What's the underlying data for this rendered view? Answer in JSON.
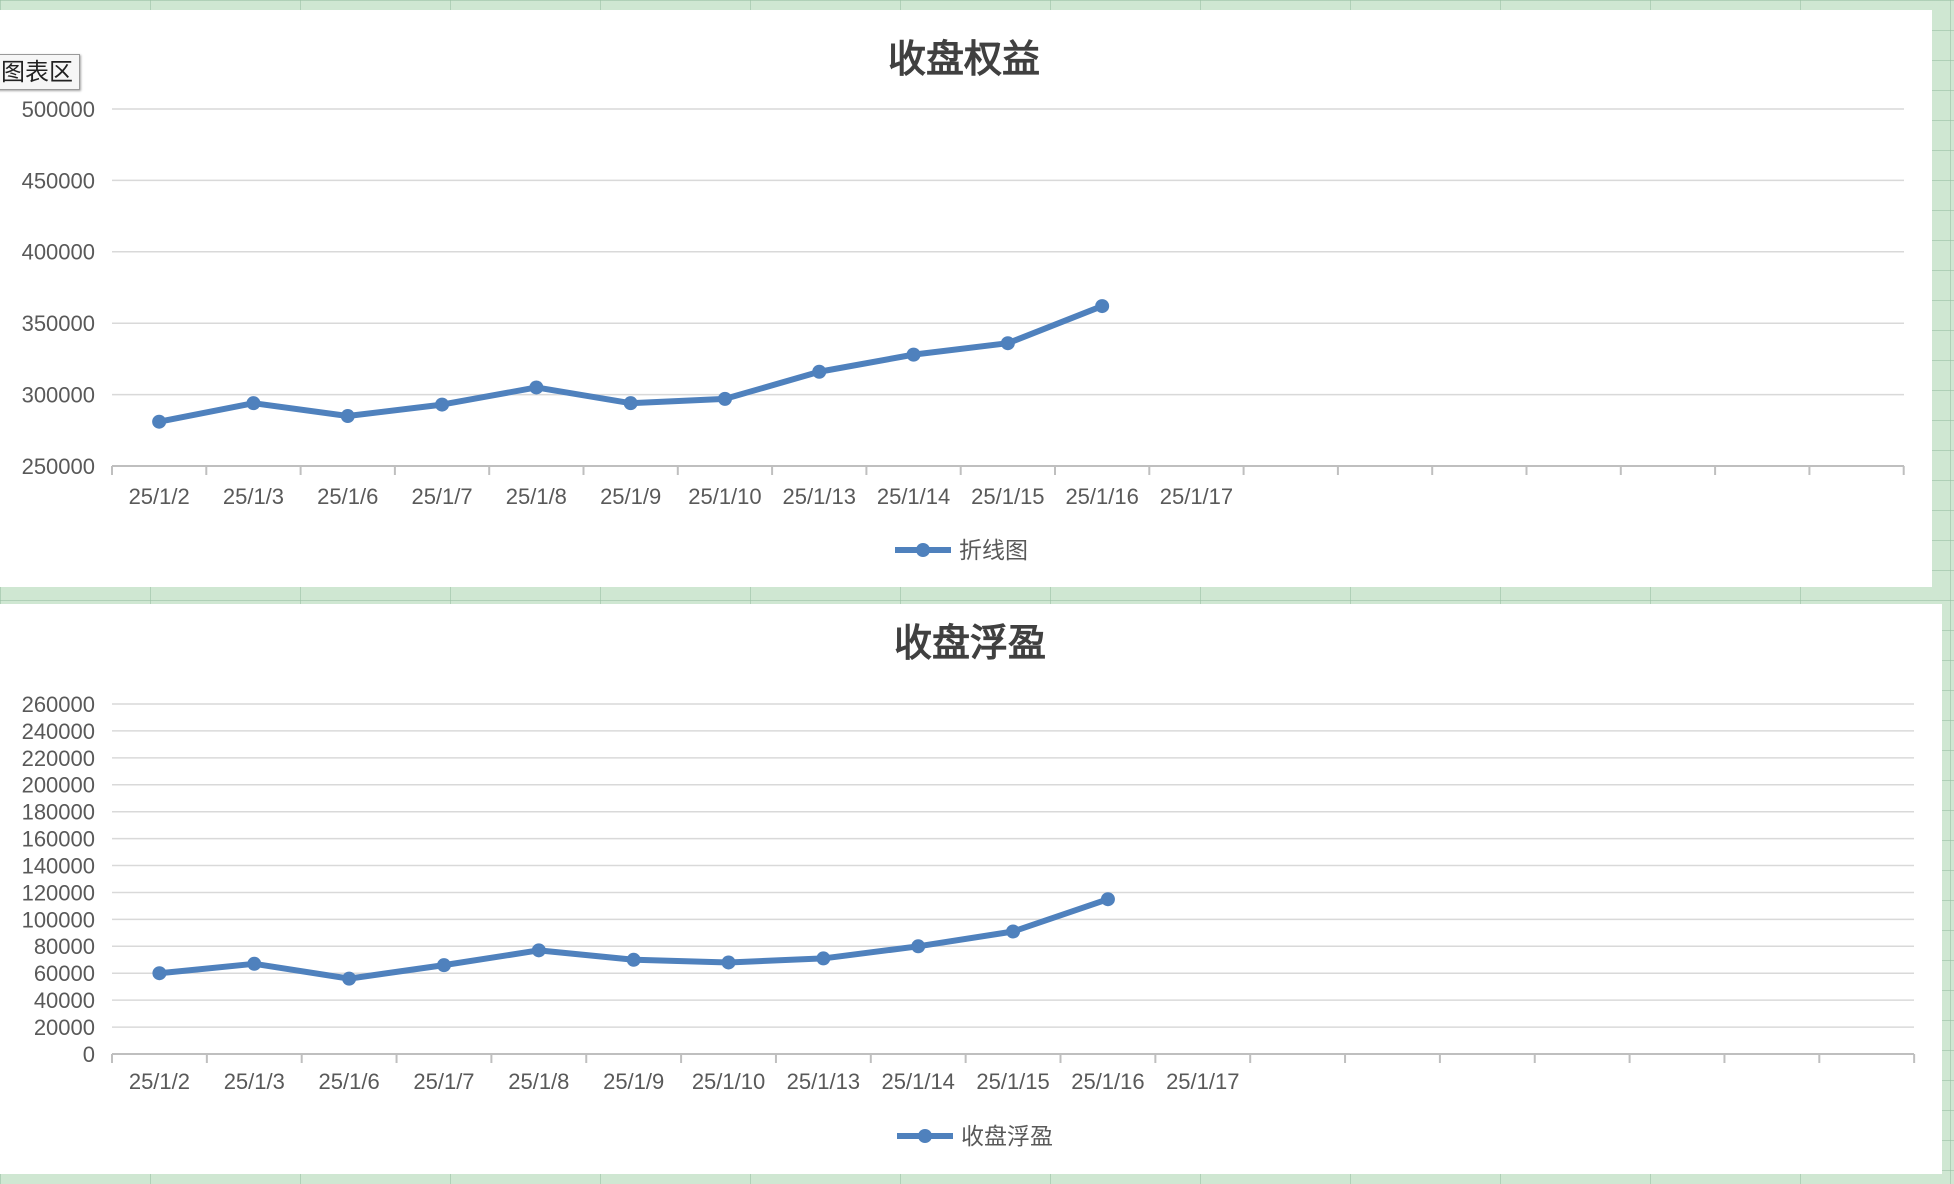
{
  "page": {
    "background": "#cfe7d2"
  },
  "tooltip": {
    "label": "图表区"
  },
  "chart_data": [
    {
      "type": "line",
      "title": "收盘权益",
      "xlabel": "",
      "ylabel": "",
      "categories": [
        "25/1/2",
        "25/1/3",
        "25/1/6",
        "25/1/7",
        "25/1/8",
        "25/1/9",
        "25/1/10",
        "25/1/13",
        "25/1/14",
        "25/1/15",
        "25/1/16",
        "25/1/17"
      ],
      "series": [
        {
          "name": "折线图",
          "color": "#4f81bd",
          "values": [
            281000,
            294000,
            285000,
            293000,
            305000,
            294000,
            297000,
            316000,
            328000,
            336000,
            362000,
            null
          ]
        }
      ],
      "ylim": [
        250000,
        500000
      ],
      "yticks": [
        "250000",
        "300000",
        "350000",
        "400000",
        "450000",
        "500000"
      ],
      "grid": true,
      "legend": "bottom"
    },
    {
      "type": "line",
      "title": "收盘浮盈",
      "xlabel": "",
      "ylabel": "",
      "categories": [
        "25/1/2",
        "25/1/3",
        "25/1/6",
        "25/1/7",
        "25/1/8",
        "25/1/9",
        "25/1/10",
        "25/1/13",
        "25/1/14",
        "25/1/15",
        "25/1/16",
        "25/1/17"
      ],
      "series": [
        {
          "name": "收盘浮盈",
          "color": "#4f81bd",
          "values": [
            60000,
            67000,
            56000,
            66000,
            77000,
            70000,
            68000,
            71000,
            80000,
            91000,
            115000,
            null
          ]
        }
      ],
      "ylim": [
        0,
        260000
      ],
      "yticks": [
        "0",
        "20000",
        "40000",
        "60000",
        "80000",
        "100000",
        "120000",
        "140000",
        "160000",
        "180000",
        "200000",
        "220000",
        "240000",
        "260000"
      ],
      "grid": true,
      "legend": "bottom"
    }
  ]
}
